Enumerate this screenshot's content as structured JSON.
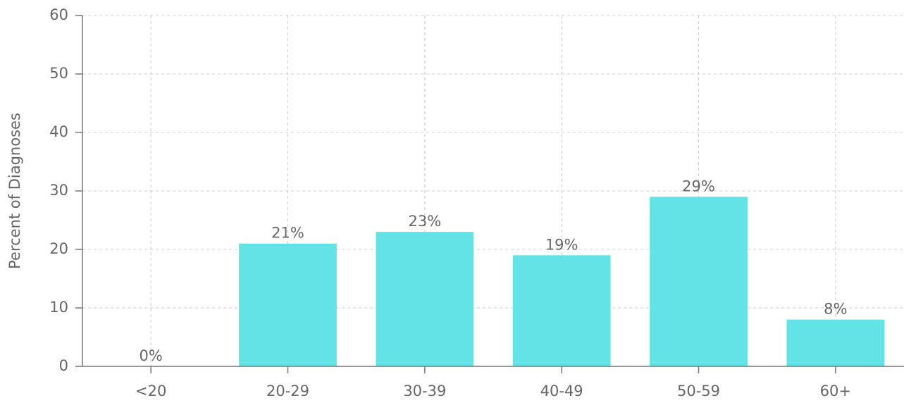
{
  "chart_data": {
    "type": "bar",
    "y_label": "Percent of Diagnoses",
    "categories": [
      "<20",
      "20-29",
      "30-39",
      "40-49",
      "50-59",
      "60+"
    ],
    "values": [
      0,
      21,
      23,
      19,
      29,
      8
    ],
    "value_labels": [
      "0%",
      "21%",
      "23%",
      "19%",
      "29%",
      "8%"
    ],
    "color": "#63e3e6",
    "ylim": [
      0,
      60
    ],
    "yticks": [
      0,
      10,
      20,
      30,
      40,
      50,
      60
    ],
    "grid": true
  }
}
